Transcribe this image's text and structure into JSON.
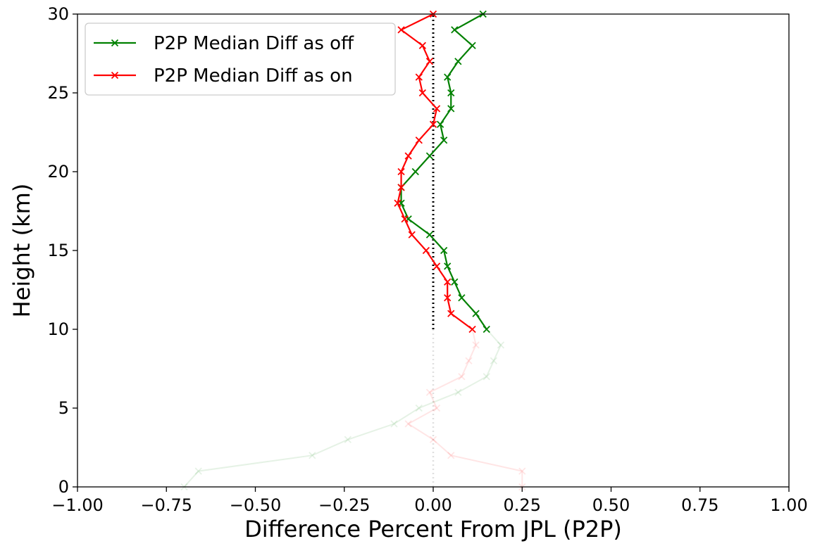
{
  "chart_data": {
    "type": "line",
    "title": "",
    "xlabel": "Difference Percent From JPL (P2P)",
    "ylabel": "Height (km)",
    "xlim": [
      -1.0,
      1.0
    ],
    "ylim": [
      0,
      30
    ],
    "x_ticks": [
      "−1.00",
      "−0.75",
      "−0.50",
      "−0.25",
      "0.00",
      "0.25",
      "0.50",
      "0.75",
      "1.00"
    ],
    "y_ticks": [
      "0",
      "5",
      "10",
      "15",
      "20",
      "25",
      "30"
    ],
    "grid": false,
    "legend_position": "upper-left",
    "reference_line": {
      "x": 0.0,
      "style": "dotted",
      "color": "#000000"
    },
    "series": [
      {
        "name": "P2P Median Diff as off",
        "color": "#008000",
        "marker": "x",
        "y": [
          0,
          1,
          2,
          3,
          4,
          5,
          6,
          7,
          8,
          9,
          10,
          11,
          12,
          13,
          14,
          15,
          16,
          17,
          18,
          19,
          20,
          21,
          22,
          23,
          24,
          25,
          26,
          27,
          28,
          29,
          30
        ],
        "x": [
          -0.7,
          -0.66,
          -0.34,
          -0.24,
          -0.11,
          -0.04,
          0.07,
          0.15,
          0.17,
          0.19,
          0.15,
          0.12,
          0.08,
          0.06,
          0.04,
          0.03,
          -0.01,
          -0.07,
          -0.09,
          -0.09,
          -0.05,
          -0.01,
          0.03,
          0.02,
          0.05,
          0.05,
          0.04,
          0.07,
          0.11,
          0.06,
          0.14
        ]
      },
      {
        "name": "P2P Median Diff as on",
        "color": "#ff0000",
        "marker": "x",
        "y": [
          0,
          1,
          2,
          3,
          4,
          5,
          6,
          7,
          8,
          9,
          10,
          11,
          12,
          13,
          14,
          15,
          16,
          17,
          18,
          19,
          20,
          21,
          22,
          23,
          24,
          25,
          26,
          27,
          28,
          29,
          30
        ],
        "x": [
          0.25,
          0.25,
          0.05,
          0.0,
          -0.07,
          0.01,
          -0.01,
          0.08,
          0.1,
          0.12,
          0.11,
          0.05,
          0.04,
          0.04,
          0.01,
          -0.02,
          -0.06,
          -0.08,
          -0.1,
          -0.09,
          -0.09,
          -0.07,
          -0.04,
          0.0,
          0.01,
          -0.03,
          -0.04,
          -0.01,
          -0.03,
          -0.09,
          0.0
        ]
      }
    ],
    "faded_below_y": 10
  }
}
